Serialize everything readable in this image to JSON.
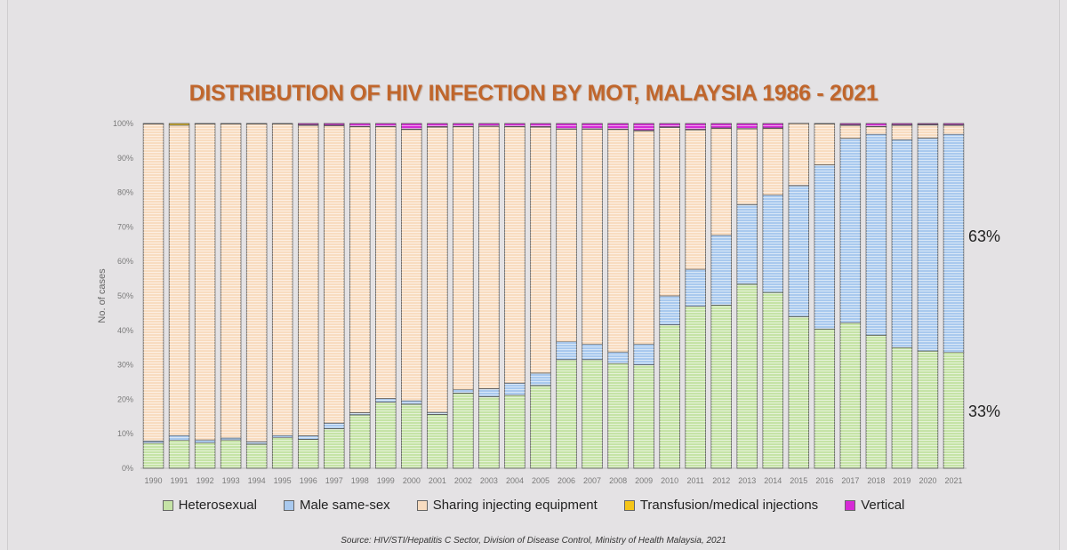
{
  "title": "DISTRIBUTION OF HIV INFECTION BY MOT, MALAYSIA 1986 - 2021",
  "source": "Source: HIV/STI/Hepatitis C Sector, Division of Disease Control, Ministry of Health Malaysia, 2021",
  "annotations": {
    "upper": "63%",
    "lower": "33%"
  },
  "colors": {
    "Heterosexual": "#c5e3a6",
    "Male same-sex": "#a9c9ee",
    "Sharing injecting equipment": "#f8dcc0",
    "Transfusion/medical injections": "#f5c518",
    "Vertical": "#d62ad6"
  },
  "chart_data": {
    "type": "bar",
    "stacked": true,
    "percent": true,
    "ylabel": "No. of cases",
    "xlabel": "",
    "ylim": [
      0,
      100
    ],
    "yticks": [
      "0%",
      "10%",
      "20%",
      "30%",
      "40%",
      "50%",
      "60%",
      "70%",
      "80%",
      "90%",
      "100%"
    ],
    "grid": false,
    "legend_position": "bottom",
    "categories": [
      "1990",
      "1991",
      "1992",
      "1993",
      "1994",
      "1995",
      "1996",
      "1997",
      "1998",
      "1999",
      "2000",
      "2001",
      "2002",
      "2003",
      "2004",
      "2005",
      "2006",
      "2007",
      "2008",
      "2009",
      "2010",
      "2011",
      "2012",
      "2013",
      "2014",
      "2015",
      "2016",
      "2017",
      "2018",
      "2019",
      "2020",
      "2021"
    ],
    "series": [
      {
        "name": "Heterosexual",
        "values": [
          7.3,
          8.1,
          7.4,
          8.2,
          7.0,
          8.9,
          8.4,
          11.5,
          15.5,
          19.2,
          18.6,
          15.6,
          21.8,
          20.8,
          21.2,
          24.0,
          31.5,
          31.5,
          30.4,
          30.0,
          41.6,
          47.0,
          47.3,
          53.4,
          51.0,
          44.0,
          40.4,
          42.2,
          38.6,
          35.0,
          34.0,
          33.6
        ]
      },
      {
        "name": "Male same-sex",
        "values": [
          0.6,
          1.4,
          0.8,
          0.6,
          0.7,
          0.6,
          1.0,
          1.6,
          0.6,
          1.0,
          1.0,
          0.6,
          1.0,
          2.3,
          3.5,
          3.6,
          5.2,
          4.5,
          3.3,
          6.0,
          8.4,
          10.7,
          20.3,
          23.1,
          28.3,
          38.0,
          47.6,
          53.5,
          58.3,
          60.3,
          61.8,
          63.3
        ]
      },
      {
        "name": "Sharing injecting equipment",
        "values": [
          92.0,
          90.0,
          91.7,
          91.1,
          92.2,
          90.4,
          90.1,
          86.3,
          83.0,
          78.9,
          78.7,
          82.8,
          76.3,
          76.1,
          74.4,
          71.4,
          61.7,
          62.4,
          64.6,
          61.9,
          48.9,
          40.5,
          31.0,
          22.0,
          19.3,
          18.0,
          11.9,
          3.8,
          2.2,
          4.2,
          3.8,
          2.6
        ]
      },
      {
        "name": "Transfusion/medical injections",
        "values": [
          0.1,
          0.5,
          0.1,
          0.1,
          0.1,
          0.1,
          0.1,
          0.1,
          0.1,
          0.1,
          0.1,
          0.1,
          0.1,
          0.1,
          0.1,
          0.1,
          0.1,
          0.1,
          0.1,
          0.1,
          0.1,
          0.1,
          0.1,
          0.1,
          0.1,
          0.1,
          0.1,
          0.1,
          0.1,
          0.1,
          0.1,
          0.1
        ]
      },
      {
        "name": "Vertical",
        "values": [
          0.0,
          0.0,
          0.0,
          0.0,
          0.0,
          0.0,
          0.4,
          0.5,
          0.8,
          0.8,
          1.6,
          0.9,
          0.8,
          0.7,
          0.8,
          0.9,
          1.5,
          1.5,
          1.6,
          2.0,
          1.0,
          1.7,
          1.3,
          1.4,
          1.3,
          0.0,
          0.0,
          0.4,
          0.8,
          0.4,
          0.3,
          0.4
        ]
      }
    ]
  }
}
